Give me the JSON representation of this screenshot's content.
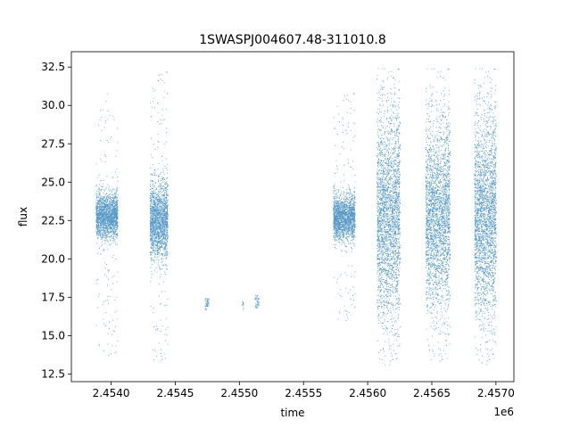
{
  "chart_data": {
    "type": "scatter",
    "title": "1SWASPJ004607.48-311010.8",
    "xlabel": "time",
    "ylabel": "flux",
    "x_offset_label": "1e6",
    "xlim": [
      2.45369,
      2.45714
    ],
    "ylim": [
      12.0,
      33.5
    ],
    "xticks": [
      2.454,
      2.4545,
      2.455,
      2.4555,
      2.456,
      2.4565,
      2.457
    ],
    "xtick_labels": [
      "2.4540",
      "2.4545",
      "2.4550",
      "2.4555",
      "2.4560",
      "2.4565",
      "2.4570"
    ],
    "yticks": [
      12.5,
      15.0,
      17.5,
      20.0,
      22.5,
      25.0,
      27.5,
      30.0,
      32.5
    ],
    "ytick_labels": [
      "12.5",
      "15.0",
      "17.5",
      "20.0",
      "22.5",
      "25.0",
      "27.5",
      "30.0",
      "32.5"
    ],
    "marker_color": "#1f77b4",
    "grid": false,
    "series": [
      {
        "clusters": [
          {
            "x_range": [
              2.45388,
              2.45405
            ],
            "center": 22.8,
            "core_spread": 0.7,
            "tail_range": [
              13.5,
              30.8
            ],
            "density": 0.45
          },
          {
            "x_range": [
              2.4543,
              2.45444
            ],
            "center": 22.5,
            "core_spread": 1.2,
            "tail_range": [
              13.1,
              32.2
            ],
            "density": 0.55
          },
          {
            "x_range": [
              2.45473,
              2.45476
            ],
            "center": 17.0,
            "core_spread": 0.3,
            "tail_range": [
              16.7,
              17.4
            ],
            "density": 0.05
          },
          {
            "x_range": [
              2.45502,
              2.45503
            ],
            "center": 16.9,
            "core_spread": 0.3,
            "tail_range": [
              16.7,
              17.2
            ],
            "density": 0.03
          },
          {
            "x_range": [
              2.45512,
              2.45515
            ],
            "center": 17.2,
            "core_spread": 0.3,
            "tail_range": [
              16.8,
              17.6
            ],
            "density": 0.05
          },
          {
            "x_range": [
              2.45573,
              2.4559
            ],
            "center": 22.7,
            "core_spread": 0.7,
            "tail_range": [
              15.8,
              30.8
            ],
            "density": 0.45
          },
          {
            "x_range": [
              2.45607,
              2.45625
            ],
            "center": 22.8,
            "core_spread": 3.2,
            "tail_range": [
              13.1,
              32.4
            ],
            "density": 1.0
          },
          {
            "x_range": [
              2.45645,
              2.45664
            ],
            "center": 22.8,
            "core_spread": 2.9,
            "tail_range": [
              13.1,
              32.4
            ],
            "density": 1.0
          },
          {
            "x_range": [
              2.45683,
              2.457
            ],
            "center": 22.8,
            "core_spread": 3.1,
            "tail_range": [
              13.1,
              32.4
            ],
            "density": 1.0
          }
        ]
      }
    ]
  }
}
